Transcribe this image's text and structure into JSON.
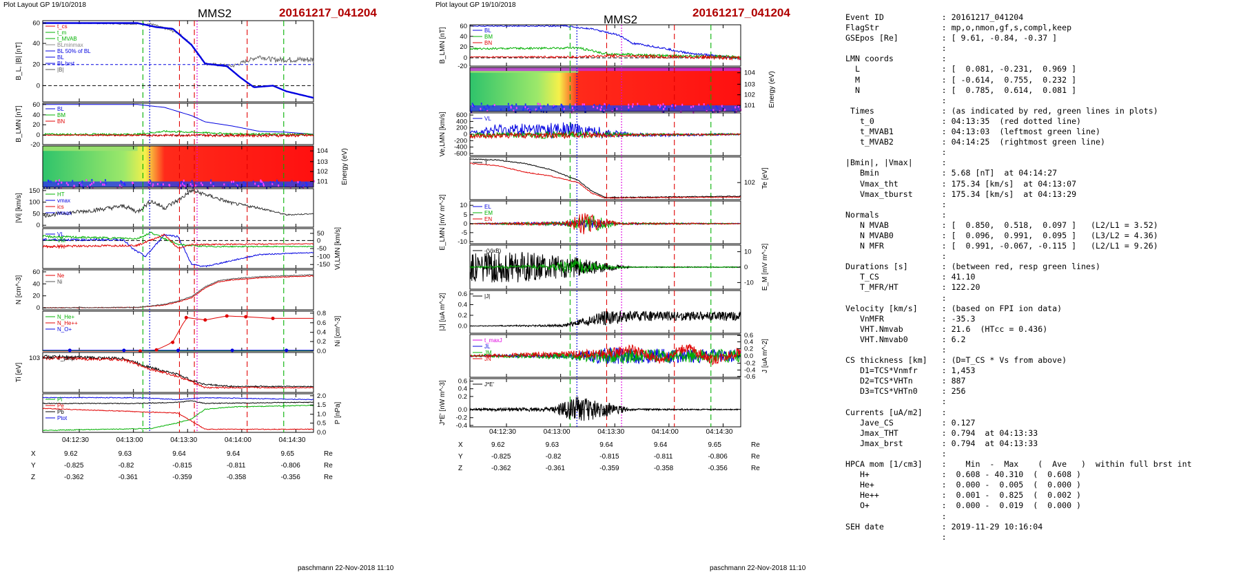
{
  "left": {
    "layout_label": "Plot Layout GP 19/10/2018",
    "spacecraft": "MMS2",
    "event": "20161217_041204",
    "footer": "paschmann 22-Nov-2018 11:10",
    "time_ticks": [
      "04:12:30",
      "04:13:00",
      "04:13:30",
      "04:14:00",
      "04:14:30"
    ],
    "orbit": {
      "labels": [
        "X",
        "Y",
        "Z"
      ],
      "unit": "Re",
      "rows": [
        [
          "9.62",
          "9.63",
          "9.64",
          "9.64",
          "9.65"
        ],
        [
          "-0.825",
          "-0.82",
          "-0.815",
          "-0.811",
          "-0.806"
        ],
        [
          "-0.362",
          "-0.361",
          "-0.359",
          "-0.358",
          "-0.356"
        ]
      ]
    },
    "panels": {
      "bl": {
        "ylabel": "B_L, |B| [nT]",
        "ticks": [
          "60",
          "40",
          "20",
          "0"
        ],
        "legend": [
          "t_cs",
          "t_m",
          "t_MVAB",
          "BLminmax",
          "BL 50% of BL",
          "BL",
          "BL brst",
          "|B|"
        ]
      },
      "blmn": {
        "ylabel": "B_LMN [nT]",
        "ticks": [
          "60",
          "40",
          "20",
          "0",
          "-20"
        ],
        "legend": [
          "BL",
          "BM",
          "BN"
        ]
      },
      "spec": {
        "ylabel": "Energy (eV)",
        "ticks": [
          "10^4",
          "10^3",
          "10^2",
          "10^1"
        ]
      },
      "vi": {
        "ylabel": "|Vi| [km/s]",
        "ticks": [
          "150",
          "100",
          "50",
          "0"
        ],
        "legend": [
          "HT",
          "vmax",
          "ics",
          "ivmax"
        ]
      },
      "vlmn": {
        "ylabel": "Vi,LMN [km/s]",
        "ticks": [
          "50",
          "0",
          "-50",
          "-100",
          "-150"
        ],
        "legend": [
          "VL",
          "VM",
          "VN"
        ]
      },
      "n": {
        "ylabel": "N [cm^-3]",
        "ticks": [
          "60",
          "40",
          "20",
          "0"
        ],
        "legend": [
          "Ne",
          "Ni"
        ]
      },
      "ni": {
        "ylabel": "Ni [cm^-3]",
        "ticks": [
          "0.8",
          "0.6",
          "0.4",
          "0.2",
          "0.0"
        ],
        "legend": [
          "N_He+",
          "N_He++",
          "N_O+"
        ]
      },
      "ti": {
        "ylabel": "Ti [eV]",
        "ticks": [
          "10^3"
        ],
        "legend": [
          "T_perp"
        ]
      },
      "p": {
        "ylabel": "P [nPa]",
        "ticks": [
          "2.0",
          "1.5",
          "1.0",
          "0.5",
          "0.0"
        ],
        "legend": [
          "Pi",
          "Pe",
          "Pb",
          "Ptot"
        ]
      }
    }
  },
  "middle": {
    "layout_label": "Plot layout GP 19/10/2018",
    "spacecraft": "MMS2",
    "event": "20161217_041204",
    "footer": "paschmann 22-Nov-2018 11:10",
    "time_ticks": [
      "04:12:30",
      "04:13:00",
      "04:13:30",
      "04:14:00",
      "04:14:30"
    ],
    "orbit": {
      "labels": [
        "X",
        "Y",
        "Z"
      ],
      "unit": "Re",
      "rows": [
        [
          "9.62",
          "9.63",
          "9.64",
          "9.64",
          "9.65"
        ],
        [
          "-0.825",
          "-0.82",
          "-0.815",
          "-0.811",
          "-0.806"
        ],
        [
          "-0.362",
          "-0.361",
          "-0.359",
          "-0.358",
          "-0.356"
        ]
      ]
    },
    "panels": {
      "blmn": {
        "ylabel": "B_LMN [nT]",
        "ticks": [
          "60",
          "40",
          "20",
          "0",
          "-20"
        ],
        "legend": [
          "BL",
          "BM",
          "BN"
        ]
      },
      "spec": {
        "ylabel": "Energy (eV)",
        "ticks": [
          "10^4",
          "10^3",
          "10^2",
          "10^1"
        ]
      },
      "ve": {
        "ylabel": "Ve,LMN [km/s]",
        "ticks": [
          "600",
          "400",
          "200",
          "0",
          "-200",
          "-400",
          "-600"
        ],
        "legend": [
          "VL"
        ]
      },
      "te": {
        "ylabel": "Te [eV]",
        "ticks": [
          "10^2"
        ],
        "legend": [
          "T"
        ]
      },
      "e": {
        "ylabel": "E_LMN [mV m^-2]",
        "ticks": [
          "10",
          "5",
          "0",
          "-5",
          "-10"
        ],
        "legend": [
          "EL",
          "EM",
          "EN"
        ]
      },
      "em": {
        "ylabel": "E_M [mV m^-2]",
        "ticks": [
          "10",
          "0",
          "-10"
        ],
        "legend": [
          "-(VixB)"
        ]
      },
      "jabs": {
        "ylabel": "|J| [uA m^-2]",
        "ticks": [
          "0.6",
          "0.4",
          "0.2",
          "0.0"
        ],
        "legend": [
          "|J|"
        ]
      },
      "j": {
        "ylabel": "J [uA m^-2]",
        "ticks": [
          "0.6",
          "0.4",
          "0.2",
          "0.0",
          "-0.2",
          "-0.4",
          "-0.6"
        ],
        "legend": [
          "t_maxJ",
          "JL",
          "JM",
          "JN"
        ]
      },
      "jdote": {
        "ylabel": "J*E' [nW m^-3]",
        "ticks": [
          "0.6",
          "0.4",
          "0.2",
          "0.0",
          "-0.2",
          "-0.4"
        ],
        "legend": [
          "J*E'"
        ]
      }
    }
  },
  "summary": [
    [
      "Event ID",
      ": 20161217_041204"
    ],
    [
      "FlagStr",
      ": mp,o,nmon,gf,s,compl,keep"
    ],
    [
      "GSEpos [Re]",
      ": [ 9.61, -0.84, -0.37 ]"
    ],
    [
      "",
      ":"
    ],
    [
      "LMN coords",
      ":"
    ],
    [
      "  L",
      ": [  0.081, -0.231,  0.969 ]"
    ],
    [
      "  M",
      ": [ -0.614,  0.755,  0.232 ]"
    ],
    [
      "  N",
      ": [  0.785,  0.614,  0.081 ]"
    ],
    [
      "",
      ":"
    ],
    [
      " Times",
      ": (as indicated by red, green lines in plots)"
    ],
    [
      "   t_0",
      ": 04:13:35  (red dotted line)"
    ],
    [
      "   t_MVAB1",
      ": 04:13:03  (leftmost green line)"
    ],
    [
      "   t_MVAB2",
      ": 04:14:25  (rightmost green line)"
    ],
    [
      "",
      ":"
    ],
    [
      "|Bmin|, |Vmax|",
      ":"
    ],
    [
      "   Bmin",
      ": 5.68 [nT]  at 04:14:27"
    ],
    [
      "   Vmax_tht",
      ": 175.34 [km/s]  at 04:13:07"
    ],
    [
      "   Vmax_tburst",
      ": 175.34 [km/s]  at 04:13:29"
    ],
    [
      "",
      ":"
    ],
    [
      "Normals",
      ":"
    ],
    [
      "   N MVAB",
      ": [  0.850,  0.518,  0.097 ]   (L2/L1 = 3.52)"
    ],
    [
      "   N MVAB0",
      ": [  0.096,  0.991,  0.095 ]   (L3/L2 = 4.36)"
    ],
    [
      "   N MFR",
      ": [  0.991, -0.067, -0.115 ]   (L2/L1 = 9.26)"
    ],
    [
      "",
      ":"
    ],
    [
      "Durations [s]",
      ": (between red, resp green lines)"
    ],
    [
      "   T_CS",
      ": 41.10"
    ],
    [
      "   T_MFR/HT",
      ": 122.20"
    ],
    [
      "",
      ":"
    ],
    [
      "Velocity [km/s]",
      ": (based on FPI ion data)"
    ],
    [
      "   VnMFR",
      ": -35.3"
    ],
    [
      "   VHT.Nmvab",
      ": 21.6  (HTcc = 0.436)"
    ],
    [
      "   VHT.Nmvab0",
      ": 6.2"
    ],
    [
      "",
      ":"
    ],
    [
      "CS thickness [km]",
      ": (D=T_CS * Vs from above)"
    ],
    [
      "   D1=TCS*Vnmfr",
      ": 1,453"
    ],
    [
      "   D2=TCS*VHTn",
      ": 887"
    ],
    [
      "   D3=TCS*VHTn0",
      ": 256"
    ],
    [
      "",
      ":"
    ],
    [
      "Currents [uA/m2]",
      ":"
    ],
    [
      "   Jave_CS",
      ": 0.127"
    ],
    [
      "   Jmax_THT",
      ": 0.794  at 04:13:33"
    ],
    [
      "   Jmax_brst",
      ": 0.794  at 04:13:33"
    ],
    [
      "",
      ":"
    ],
    [
      "HPCA mom [1/cm3]",
      ":    Min  -  Max    (  Ave   )  within full brst int"
    ],
    [
      "   H+",
      ":  0.608 - 40.310  (  0.608 )"
    ],
    [
      "   He+",
      ":  0.000 -  0.005  (  0.000 )"
    ],
    [
      "   He++",
      ":  0.001 -  0.825  (  0.002 )"
    ],
    [
      "   O+",
      ":  0.000 -  0.019  (  0.000 )"
    ],
    [
      "",
      ":"
    ],
    [
      "SEH date",
      ": 2019-11-29 10:16:04"
    ],
    [
      "",
      ":"
    ]
  ],
  "colors": {
    "event": "#b00000",
    "red": "#e00000",
    "green": "#00b000",
    "blue": "#0000e0",
    "magenta": "#e000e0",
    "black": "#000000"
  },
  "chart_data": [
    {
      "type": "line",
      "panel": "left.bl",
      "title": "MMS2",
      "xlabel": "",
      "ylabel": "BL, |B| [nT]",
      "ylim": [
        -15,
        62
      ],
      "x": [
        "04:12:30",
        "04:12:45",
        "04:13:00",
        "04:13:10",
        "04:13:20",
        "04:13:30",
        "04:13:40",
        "04:13:50",
        "04:14:00",
        "04:14:10",
        "04:14:20",
        "04:14:30",
        "04:14:40"
      ],
      "series": [
        {
          "name": "BL",
          "values": [
            60,
            60,
            59,
            55,
            52,
            38,
            22,
            18,
            5,
            -3,
            -5,
            -8,
            -12
          ]
        },
        {
          "name": "|B|",
          "values": [
            60,
            60,
            59,
            55,
            52,
            38,
            22,
            18,
            25,
            28,
            25,
            25,
            25
          ]
        }
      ]
    },
    {
      "type": "line",
      "panel": "left.n",
      "ylabel": "N [cm^-3]",
      "ylim": [
        0,
        60
      ],
      "x": [
        "04:12:30",
        "04:13:00",
        "04:13:20",
        "04:13:30",
        "04:13:40",
        "04:14:00",
        "04:14:30"
      ],
      "series": [
        {
          "name": "Ne",
          "values": [
            2,
            3,
            8,
            20,
            45,
            50,
            52
          ]
        },
        {
          "name": "Ni",
          "values": [
            2,
            3,
            8,
            22,
            48,
            52,
            55
          ]
        }
      ]
    },
    {
      "type": "line",
      "panel": "left.ni",
      "ylabel": "Ni [cm^-3]",
      "ylim": [
        0,
        0.8
      ],
      "x": [
        "04:13:05",
        "04:13:17",
        "04:13:25",
        "04:13:35",
        "04:13:45",
        "04:14:00",
        "04:14:15",
        "04:14:30"
      ],
      "series": [
        {
          "name": "N_He++",
          "values": [
            0.0,
            0.03,
            0.2,
            0.67,
            0.62,
            0.7,
            0.7,
            0.65
          ]
        }
      ]
    }
  ]
}
